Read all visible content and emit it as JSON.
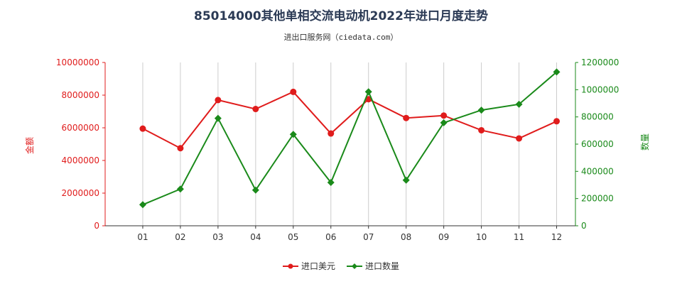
{
  "chart_data": {
    "type": "line",
    "title": "85014000其他单相交流电动机2022年进口月度走势",
    "subtitle": "进出口服务网（ciedata.com）",
    "categories": [
      "01",
      "02",
      "03",
      "04",
      "05",
      "06",
      "07",
      "08",
      "09",
      "10",
      "11",
      "12"
    ],
    "ylabel_left": "金额",
    "ylabel_right": "数量",
    "ylim_left": [
      0,
      10000000
    ],
    "ylim_right": [
      0,
      1200000
    ],
    "yticks_left": [
      "0",
      "2000000",
      "4000000",
      "6000000",
      "8000000",
      "10000000"
    ],
    "yticks_right": [
      "0",
      "200000",
      "400000",
      "600000",
      "800000",
      "1000000",
      "1200000"
    ],
    "grid": "vertical",
    "legend_position": "bottom-center",
    "series": [
      {
        "name": "进口美元",
        "axis": "left",
        "color": "#e01c1c",
        "marker": "circle",
        "values": [
          5950000,
          4750000,
          7700000,
          7150000,
          8200000,
          5650000,
          7750000,
          6600000,
          6750000,
          5850000,
          5350000,
          6400000
        ]
      },
      {
        "name": "进口数量",
        "axis": "right",
        "color": "#1a8a1a",
        "marker": "diamond",
        "values": [
          155000,
          270000,
          790000,
          262000,
          672000,
          318000,
          985000,
          335000,
          757000,
          850000,
          893000,
          1130000
        ]
      }
    ]
  }
}
